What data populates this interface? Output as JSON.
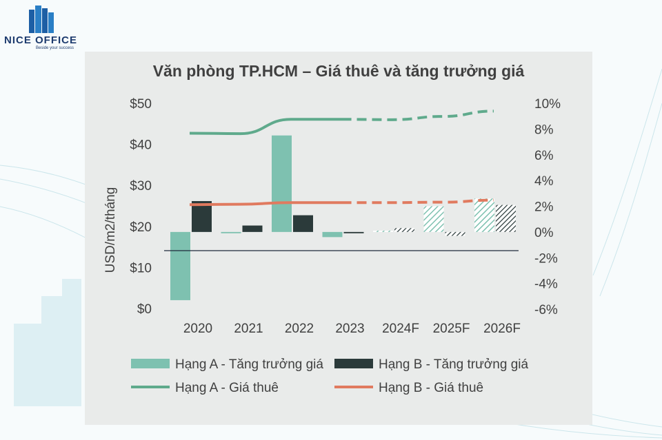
{
  "brand": {
    "name": "NICE OFFICE",
    "tagline": "Beside your success"
  },
  "chart_data": {
    "type": "bar",
    "title": "Văn phòng TP.HCM – Giá thuê và tăng trưởng giá",
    "ylabel": "USD/m2/tháng",
    "categories": [
      "2020",
      "2021",
      "2022",
      "2023",
      "2024F",
      "2025F",
      "2026F"
    ],
    "forecast_categories": [
      "2024F",
      "2025F",
      "2026F"
    ],
    "y_left": {
      "ticks": [
        "$0",
        "$10",
        "$20",
        "$30",
        "$40",
        "$50"
      ],
      "min": 0,
      "max": 50
    },
    "y_right": {
      "ticks": [
        "-6%",
        "-4%",
        "-2%",
        "0%",
        "2%",
        "4%",
        "6%",
        "8%",
        "10%"
      ],
      "min": -6,
      "max": 10,
      "unit": "%"
    },
    "bar_series": [
      {
        "name": "Hạng A - Tăng trưởng giá",
        "axis": "right",
        "color": "#7ec1b0",
        "values": [
          -5.3,
          -0.1,
          7.5,
          -0.4,
          0.1,
          2.0,
          2.6
        ]
      },
      {
        "name": "Hạng B - Tăng trưởng giá",
        "axis": "right",
        "color": "#2b3a3a",
        "values": [
          2.4,
          0.5,
          1.3,
          -0.1,
          0.3,
          -0.3,
          2.1
        ]
      }
    ],
    "line_series": [
      {
        "name": "Hạng A - Giá thuê",
        "axis": "left",
        "color": "#5faa8c",
        "values": [
          42.7,
          42.6,
          46.1,
          46.1,
          46.0,
          46.8,
          48.1
        ]
      },
      {
        "name": "Hạng B - Giá thuê",
        "axis": "left",
        "color": "#e07a5f",
        "values": [
          25.3,
          25.4,
          25.8,
          25.8,
          25.8,
          25.9,
          26.4
        ]
      }
    ],
    "legend": [
      {
        "name": "Hạng A - Tăng trưởng giá",
        "kind": "bar",
        "color": "#7ec1b0"
      },
      {
        "name": "Hạng B - Tăng trưởng giá",
        "kind": "bar",
        "color": "#2b3a3a"
      },
      {
        "name": "Hạng A - Giá thuê",
        "kind": "line",
        "color": "#5faa8c"
      },
      {
        "name": "Hạng B - Giá thuê",
        "kind": "line",
        "color": "#e07a5f"
      }
    ],
    "legend_position": "bottom",
    "grid": false
  }
}
